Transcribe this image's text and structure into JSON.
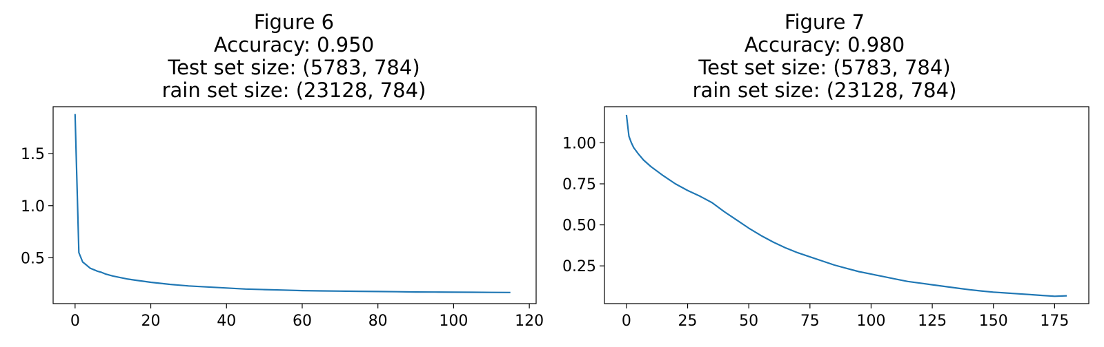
{
  "chart_data": [
    {
      "type": "line",
      "title_lines": [
        "Figure 6",
        "Accuracy: 0.950",
        "Test set size: (5783, 784)",
        "rain set size: (23128, 784)"
      ],
      "xlim": [
        -5.8,
        121.8
      ],
      "ylim": [
        0.06,
        1.95
      ],
      "xticks": [
        0,
        20,
        40,
        60,
        80,
        100,
        120
      ],
      "yticks": [
        0.5,
        1.0,
        1.5
      ],
      "ytick_labels": [
        "0.5",
        "1.0",
        "1.5"
      ],
      "grid": false,
      "series": [
        {
          "color": "#1f77b4",
          "x": [
            0,
            1,
            2,
            3,
            4,
            5,
            6,
            7,
            8,
            9,
            10,
            12,
            14,
            16,
            18,
            20,
            25,
            30,
            35,
            40,
            45,
            50,
            55,
            60,
            65,
            70,
            75,
            80,
            85,
            90,
            95,
            100,
            105,
            110,
            115
          ],
          "y": [
            1.88,
            0.55,
            0.46,
            0.43,
            0.4,
            0.385,
            0.37,
            0.36,
            0.345,
            0.335,
            0.325,
            0.31,
            0.295,
            0.285,
            0.275,
            0.265,
            0.245,
            0.23,
            0.22,
            0.21,
            0.2,
            0.195,
            0.19,
            0.185,
            0.182,
            0.18,
            0.178,
            0.176,
            0.174,
            0.172,
            0.171,
            0.17,
            0.169,
            0.168,
            0.167
          ]
        }
      ]
    },
    {
      "type": "line",
      "title_lines": [
        "Figure 7",
        "Accuracy: 0.980",
        "Test set size: (5783, 784)",
        "rain set size: (23128, 784)"
      ],
      "xlim": [
        -9,
        189
      ],
      "ylim": [
        0.02,
        1.22
      ],
      "xticks": [
        0,
        25,
        50,
        75,
        100,
        125,
        150,
        175
      ],
      "yticks": [
        0.25,
        0.5,
        0.75,
        1.0
      ],
      "ytick_labels": [
        "0.25",
        "0.50",
        "0.75",
        "1.00"
      ],
      "grid": false,
      "series": [
        {
          "color": "#1f77b4",
          "x": [
            0,
            1,
            2,
            3,
            5,
            7,
            10,
            15,
            20,
            25,
            30,
            35,
            40,
            45,
            50,
            55,
            60,
            65,
            70,
            75,
            80,
            85,
            90,
            95,
            100,
            105,
            110,
            115,
            120,
            125,
            130,
            135,
            140,
            145,
            150,
            155,
            160,
            165,
            170,
            175,
            180
          ],
          "y": [
            1.17,
            1.04,
            1.0,
            0.97,
            0.93,
            0.895,
            0.855,
            0.8,
            0.75,
            0.71,
            0.675,
            0.635,
            0.58,
            0.53,
            0.48,
            0.435,
            0.395,
            0.36,
            0.33,
            0.305,
            0.28,
            0.255,
            0.235,
            0.215,
            0.2,
            0.185,
            0.17,
            0.155,
            0.145,
            0.135,
            0.125,
            0.115,
            0.105,
            0.097,
            0.09,
            0.085,
            0.08,
            0.075,
            0.07,
            0.065,
            0.068
          ]
        }
      ]
    }
  ]
}
